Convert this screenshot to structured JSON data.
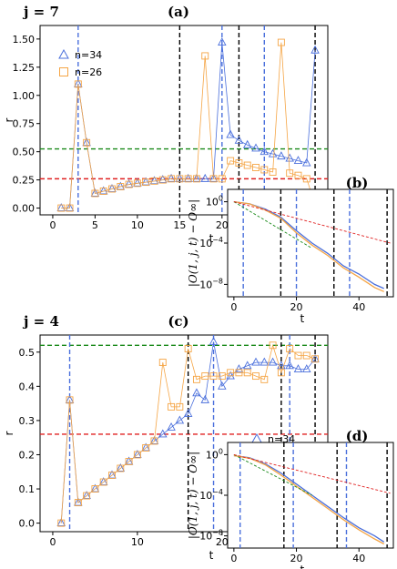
{
  "colors": {
    "blue": "#4a6fdc",
    "orange": "#f5a545",
    "green": "#1a8a1a",
    "red": "#e02020",
    "black": "#000000"
  },
  "chart_data": [
    {
      "id": "a",
      "type": "scatter",
      "panel_label": "(a)",
      "param_label": "j = 7",
      "xlabel": "t",
      "ylabel": "r",
      "xlim": [
        -1.5,
        32.5
      ],
      "ylim": [
        -0.06,
        1.62
      ],
      "xticks": [
        "0",
        "5",
        "10",
        "15",
        "20"
      ],
      "yticks": [
        "0.00",
        "0.25",
        "0.50",
        "0.75",
        "1.00",
        "1.25",
        "1.50"
      ],
      "hlines": [
        {
          "y": 0.525,
          "color": "green"
        },
        {
          "y": 0.26,
          "color": "red"
        }
      ],
      "vlines": [
        {
          "x": 3,
          "color": "blue"
        },
        {
          "x": 15,
          "color": "black"
        },
        {
          "x": 20,
          "color": "blue"
        },
        {
          "x": 22,
          "color": "black"
        },
        {
          "x": 25,
          "color": "blue"
        },
        {
          "x": 31,
          "color": "black"
        }
      ],
      "legend": [
        "n=34",
        "n=26"
      ],
      "series": [
        {
          "name": "n=34",
          "marker": "triangle",
          "color": "blue",
          "x": [
            1,
            2,
            3,
            4,
            5,
            6,
            7,
            8,
            9,
            10,
            11,
            12,
            13,
            14,
            15,
            16,
            17,
            18,
            19,
            20,
            21,
            22,
            23,
            24,
            25,
            26,
            27,
            28,
            29,
            30,
            31
          ],
          "y": [
            0.0,
            0.0,
            1.1,
            0.58,
            0.13,
            0.15,
            0.17,
            0.19,
            0.21,
            0.22,
            0.23,
            0.24,
            0.25,
            0.26,
            0.26,
            0.26,
            0.26,
            0.26,
            0.26,
            1.47,
            0.65,
            0.6,
            0.56,
            0.53,
            0.5,
            0.48,
            0.46,
            0.44,
            0.42,
            0.4,
            1.4
          ]
        },
        {
          "name": "n=26",
          "marker": "square",
          "color": "orange",
          "x": [
            1,
            2,
            3,
            4,
            5,
            6,
            7,
            8,
            9,
            10,
            11,
            12,
            13,
            14,
            15,
            16,
            17,
            18,
            19,
            20,
            21,
            22,
            23,
            24,
            25,
            26,
            27,
            28,
            29,
            30,
            31
          ],
          "y": [
            0.0,
            0.0,
            1.1,
            0.58,
            0.13,
            0.15,
            0.17,
            0.19,
            0.21,
            0.22,
            0.23,
            0.24,
            0.25,
            0.26,
            0.26,
            0.26,
            0.26,
            1.35,
            0.26,
            0.26,
            0.42,
            0.4,
            0.38,
            0.36,
            0.34,
            0.32,
            1.47,
            0.31,
            0.29,
            0.26,
            0.03
          ]
        }
      ]
    },
    {
      "id": "b",
      "type": "line",
      "panel_label": "(b)",
      "xlabel": "t",
      "ylabel": "|O(1, j, t) − O∞|",
      "ylog": true,
      "xlim": [
        -2,
        51
      ],
      "ylim_exp": [
        -9.2,
        1.2
      ],
      "xticks": [
        "0",
        "20",
        "40"
      ],
      "yticks": [
        "10^0",
        "10^-4",
        "10^-8"
      ],
      "vlines": [
        {
          "x": 3,
          "color": "blue"
        },
        {
          "x": 15,
          "color": "black"
        },
        {
          "x": 20,
          "color": "blue"
        },
        {
          "x": 32,
          "color": "black"
        },
        {
          "x": 37,
          "color": "blue"
        },
        {
          "x": 49,
          "color": "black"
        }
      ],
      "series": [
        {
          "name": "",
          "color": "blue",
          "x": [
            0,
            5,
            10,
            15,
            20,
            25,
            30,
            35,
            40,
            45,
            48
          ],
          "log10_y": [
            0.0,
            -0.2,
            -0.7,
            -1.5,
            -2.8,
            -4.0,
            -5.0,
            -6.2,
            -7.0,
            -8.0,
            -8.4
          ]
        },
        {
          "name": "",
          "color": "orange",
          "x": [
            0,
            5,
            10,
            15,
            20,
            25,
            30,
            35,
            40,
            45,
            48
          ],
          "log10_y": [
            0.0,
            -0.2,
            -0.8,
            -1.6,
            -3.0,
            -4.2,
            -5.2,
            -6.4,
            -7.3,
            -8.3,
            -8.7
          ]
        },
        {
          "name": "",
          "color": "green",
          "dashed": true,
          "x": [
            0,
            25
          ],
          "log10_y": [
            0.0,
            -4.5
          ]
        },
        {
          "name": "",
          "color": "red",
          "dashed": true,
          "x": [
            0,
            50
          ],
          "log10_y": [
            0.0,
            -4.0
          ]
        }
      ]
    },
    {
      "id": "c",
      "type": "scatter",
      "panel_label": "(c)",
      "param_label": "j = 4",
      "xlabel": "t",
      "ylabel": "r",
      "xlim": [
        -1.5,
        32.5
      ],
      "ylim": [
        -0.025,
        0.55
      ],
      "xticks": [
        "0",
        "10",
        "20",
        "30"
      ],
      "yticks": [
        "0.0",
        "0.1",
        "0.2",
        "0.3",
        "0.4",
        "0.5"
      ],
      "hlines": [
        {
          "y": 0.52,
          "color": "green"
        },
        {
          "y": 0.26,
          "color": "red"
        }
      ],
      "vlines": [
        {
          "x": 2,
          "color": "blue"
        },
        {
          "x": 16,
          "color": "black"
        },
        {
          "x": 19,
          "color": "blue"
        },
        {
          "x": 27,
          "color": "black"
        },
        {
          "x": 28,
          "color": "blue"
        },
        {
          "x": 31,
          "color": "black"
        }
      ],
      "legend": [
        "n=34",
        "n=26"
      ],
      "series": [
        {
          "name": "n=34",
          "marker": "triangle",
          "color": "blue",
          "x": [
            1,
            2,
            3,
            4,
            5,
            6,
            7,
            8,
            9,
            10,
            11,
            12,
            13,
            14,
            15,
            16,
            17,
            18,
            19,
            20,
            21,
            22,
            23,
            24,
            25,
            26,
            27,
            28,
            29,
            30,
            31
          ],
          "y": [
            0.0,
            0.36,
            0.06,
            0.08,
            0.1,
            0.12,
            0.14,
            0.16,
            0.18,
            0.2,
            0.22,
            0.24,
            0.26,
            0.28,
            0.3,
            0.32,
            0.38,
            0.36,
            0.53,
            0.4,
            0.43,
            0.45,
            0.46,
            0.47,
            0.47,
            0.47,
            0.46,
            0.46,
            0.45,
            0.45,
            0.48
          ]
        },
        {
          "name": "n=26",
          "marker": "square",
          "color": "orange",
          "x": [
            1,
            2,
            3,
            4,
            5,
            6,
            7,
            8,
            9,
            10,
            11,
            12,
            13,
            14,
            15,
            16,
            17,
            18,
            19,
            20,
            21,
            22,
            23,
            24,
            25,
            26,
            27,
            28,
            29,
            30,
            31
          ],
          "y": [
            0.0,
            0.36,
            0.06,
            0.08,
            0.1,
            0.12,
            0.14,
            0.16,
            0.18,
            0.2,
            0.22,
            0.24,
            0.47,
            0.34,
            0.34,
            0.51,
            0.42,
            0.43,
            0.43,
            0.43,
            0.44,
            0.44,
            0.44,
            0.43,
            0.42,
            0.52,
            0.44,
            0.51,
            0.49,
            0.49,
            0.48
          ]
        }
      ]
    },
    {
      "id": "d",
      "type": "line",
      "panel_label": "(d)",
      "xlabel": "t",
      "ylabel": "|O(1, j, t) − O∞|",
      "ylog": true,
      "xlim": [
        -2,
        51
      ],
      "ylim_exp": [
        -9.2,
        1.2
      ],
      "xticks": [
        "0",
        "20",
        "40"
      ],
      "yticks": [
        "10^0",
        "10^-4",
        "10^-8"
      ],
      "vlines": [
        {
          "x": 2,
          "color": "blue"
        },
        {
          "x": 16,
          "color": "black"
        },
        {
          "x": 19,
          "color": "blue"
        },
        {
          "x": 33,
          "color": "black"
        },
        {
          "x": 36,
          "color": "blue"
        },
        {
          "x": 49,
          "color": "black"
        }
      ],
      "series": [
        {
          "name": "",
          "color": "blue",
          "x": [
            0,
            5,
            10,
            15,
            20,
            25,
            30,
            35,
            40,
            45,
            48
          ],
          "log10_y": [
            -0.1,
            -0.3,
            -0.9,
            -1.8,
            -2.9,
            -4.0,
            -5.1,
            -6.2,
            -7.2,
            -8.0,
            -8.6
          ]
        },
        {
          "name": "",
          "color": "orange",
          "x": [
            0,
            5,
            10,
            15,
            20,
            25,
            30,
            35,
            40,
            45,
            48
          ],
          "log10_y": [
            -0.1,
            -0.35,
            -1.0,
            -2.0,
            -3.1,
            -4.2,
            -5.3,
            -6.4,
            -7.4,
            -8.3,
            -8.8
          ]
        },
        {
          "name": "",
          "color": "green",
          "dashed": true,
          "x": [
            0,
            25
          ],
          "log10_y": [
            0.0,
            -4.0
          ]
        },
        {
          "name": "",
          "color": "red",
          "dashed": true,
          "x": [
            0,
            50
          ],
          "log10_y": [
            0.0,
            -3.8
          ]
        }
      ]
    }
  ]
}
